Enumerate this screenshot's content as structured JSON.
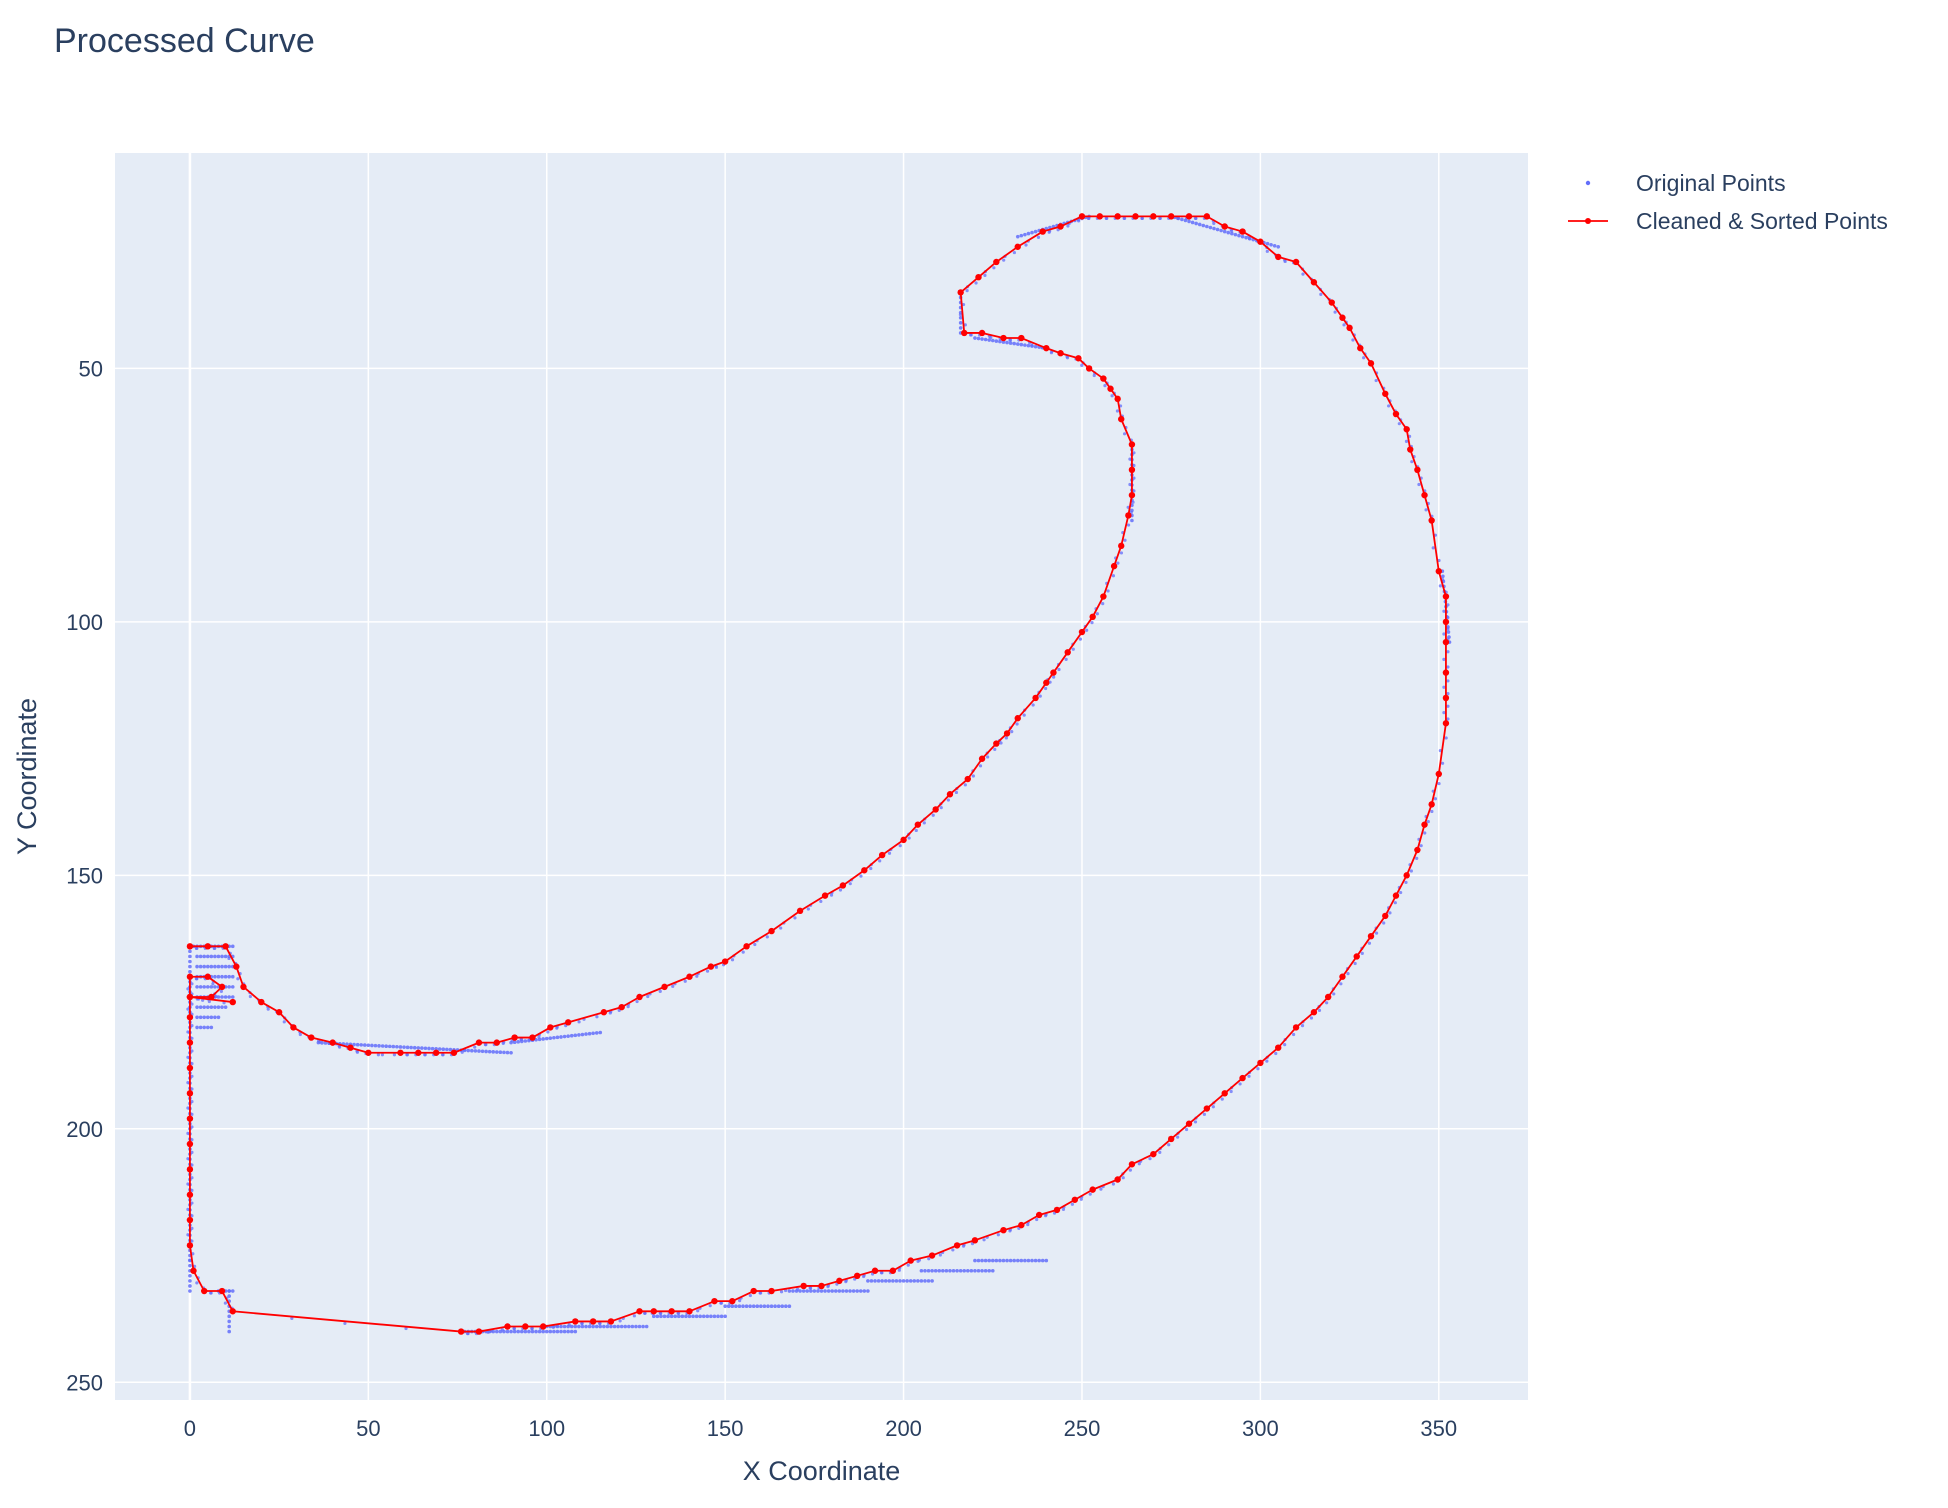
{
  "chart_data": {
    "type": "scatter",
    "title": "Processed Curve",
    "xlabel": "X Coordinate",
    "ylabel": "Y Coordinate",
    "xlim": [
      -21,
      375
    ],
    "ylim": [
      253.5,
      7.5
    ],
    "y_reversed": true,
    "grid": true,
    "legend_position": "top-right",
    "x_ticks": [
      0,
      50,
      100,
      150,
      200,
      250,
      300,
      350
    ],
    "y_ticks": [
      50,
      100,
      150,
      200,
      250
    ],
    "background_color": "#e5ecf6",
    "series": [
      {
        "name": "Original Points",
        "mode": "markers",
        "color": "#636efa",
        "segments": [
          {
            "from": [
              0,
              164
            ],
            "to": [
              0,
              232
            ]
          },
          {
            "from": [
              0,
              164
            ],
            "to": [
              12,
              164
            ]
          },
          {
            "from": [
              2,
              166
            ],
            "to": [
              12,
              166
            ]
          },
          {
            "from": [
              2,
              168
            ],
            "to": [
              12,
              168
            ]
          },
          {
            "from": [
              2,
              170
            ],
            "to": [
              12,
              170
            ]
          },
          {
            "from": [
              2,
              172
            ],
            "to": [
              12,
              172
            ]
          },
          {
            "from": [
              2,
              174
            ],
            "to": [
              12,
              174
            ]
          },
          {
            "from": [
              2,
              176
            ],
            "to": [
              10,
              176
            ]
          },
          {
            "from": [
              2,
              178
            ],
            "to": [
              8,
              178
            ]
          },
          {
            "from": [
              2,
              180
            ],
            "to": [
              6,
              180
            ]
          },
          {
            "from": [
              8,
              232
            ],
            "to": [
              12,
              232
            ]
          },
          {
            "from": [
              11,
              232
            ],
            "to": [
              11,
              240
            ]
          },
          {
            "from": [
              76,
              240
            ],
            "to": [
              108,
              240
            ]
          },
          {
            "from": [
              100,
              239
            ],
            "to": [
              128,
              239
            ]
          },
          {
            "from": [
              130,
              237
            ],
            "to": [
              150,
              237
            ]
          },
          {
            "from": [
              150,
              235
            ],
            "to": [
              168,
              235
            ]
          },
          {
            "from": [
              168,
              232
            ],
            "to": [
              190,
              232
            ]
          },
          {
            "from": [
              190,
              230
            ],
            "to": [
              208,
              230
            ]
          },
          {
            "from": [
              205,
              228
            ],
            "to": [
              225,
              228
            ]
          },
          {
            "from": [
              220,
              226
            ],
            "to": [
              240,
              226
            ]
          },
          {
            "from": [
              36,
              183
            ],
            "to": [
              90,
              185
            ]
          },
          {
            "from": [
              90,
              183
            ],
            "to": [
              115,
              181
            ]
          },
          {
            "from": [
              216,
              35
            ],
            "to": [
              216,
              43
            ]
          },
          {
            "from": [
              220,
              44
            ],
            "to": [
              240,
              46
            ]
          },
          {
            "from": [
              232,
              24
            ],
            "to": [
              252,
              20
            ]
          },
          {
            "from": [
              275,
              20
            ],
            "to": [
              305,
              26
            ]
          },
          {
            "from": [
              264,
              65
            ],
            "to": [
              264,
              80
            ]
          },
          {
            "from": [
              351,
              90
            ],
            "to": [
              353,
              104
            ]
          }
        ]
      },
      {
        "name": "Cleaned & Sorted Points",
        "mode": "lines+markers",
        "color": "#ff0000",
        "points": [
          [
            0,
            164
          ],
          [
            5,
            164
          ],
          [
            10,
            164
          ],
          [
            13,
            168
          ],
          [
            15,
            172
          ],
          [
            20,
            175
          ],
          [
            25,
            177
          ],
          [
            29,
            180
          ],
          [
            34,
            182
          ],
          [
            40,
            183
          ],
          [
            45,
            184
          ],
          [
            50,
            185
          ],
          [
            59,
            185
          ],
          [
            64,
            185
          ],
          [
            69,
            185
          ],
          [
            74,
            185
          ],
          [
            81,
            183
          ],
          [
            86,
            183
          ],
          [
            91,
            182
          ],
          [
            96,
            182
          ],
          [
            101,
            180
          ],
          [
            106,
            179
          ],
          [
            116,
            177
          ],
          [
            121,
            176
          ],
          [
            126,
            174
          ],
          [
            133,
            172
          ],
          [
            140,
            170
          ],
          [
            146,
            168
          ],
          [
            150,
            167
          ],
          [
            156,
            164
          ],
          [
            163,
            161
          ],
          [
            171,
            157
          ],
          [
            178,
            154
          ],
          [
            183,
            152
          ],
          [
            189,
            149
          ],
          [
            194,
            146
          ],
          [
            200,
            143
          ],
          [
            204,
            140
          ],
          [
            209,
            137
          ],
          [
            213,
            134
          ],
          [
            218,
            131
          ],
          [
            222,
            127
          ],
          [
            226,
            124
          ],
          [
            229,
            122
          ],
          [
            232,
            119
          ],
          [
            237,
            115
          ],
          [
            240,
            112
          ],
          [
            242,
            110
          ],
          [
            246,
            106
          ],
          [
            250,
            102
          ],
          [
            253,
            99
          ],
          [
            256,
            95
          ],
          [
            259,
            89
          ],
          [
            261,
            85
          ],
          [
            263,
            79
          ],
          [
            264,
            75
          ],
          [
            264,
            70
          ],
          [
            264,
            65
          ],
          [
            261,
            60
          ],
          [
            260,
            56
          ],
          [
            258,
            54
          ],
          [
            256,
            52
          ],
          [
            252,
            50
          ],
          [
            249,
            48
          ],
          [
            244,
            47
          ],
          [
            240,
            46
          ],
          [
            233,
            44
          ],
          [
            228,
            44
          ],
          [
            222,
            43
          ],
          [
            217,
            43
          ],
          [
            216,
            35
          ],
          [
            221,
            32
          ],
          [
            226,
            29
          ],
          [
            232,
            26
          ],
          [
            239,
            23
          ],
          [
            244,
            22
          ],
          [
            250,
            20
          ],
          [
            255,
            20
          ],
          [
            260,
            20
          ],
          [
            265,
            20
          ],
          [
            270,
            20
          ],
          [
            275,
            20
          ],
          [
            280,
            20
          ],
          [
            285,
            20
          ],
          [
            290,
            22
          ],
          [
            295,
            23
          ],
          [
            300,
            25
          ],
          [
            305,
            28
          ],
          [
            310,
            29
          ],
          [
            315,
            33
          ],
          [
            320,
            37
          ],
          [
            323,
            40
          ],
          [
            325,
            42
          ],
          [
            328,
            46
          ],
          [
            331,
            49
          ],
          [
            335,
            55
          ],
          [
            338,
            59
          ],
          [
            341,
            62
          ],
          [
            342,
            66
          ],
          [
            344,
            70
          ],
          [
            346,
            75
          ],
          [
            348,
            80
          ],
          [
            350,
            90
          ],
          [
            352,
            95
          ],
          [
            352,
            100
          ],
          [
            352,
            104
          ],
          [
            352,
            110
          ],
          [
            352,
            115
          ],
          [
            352,
            120
          ],
          [
            350,
            130
          ],
          [
            348,
            136
          ],
          [
            346,
            140
          ],
          [
            344,
            145
          ],
          [
            341,
            150
          ],
          [
            338,
            154
          ],
          [
            335,
            158
          ],
          [
            331,
            162
          ],
          [
            327,
            166
          ],
          [
            323,
            170
          ],
          [
            319,
            174
          ],
          [
            315,
            177
          ],
          [
            310,
            180
          ],
          [
            305,
            184
          ],
          [
            300,
            187
          ],
          [
            295,
            190
          ],
          [
            290,
            193
          ],
          [
            285,
            196
          ],
          [
            280,
            199
          ],
          [
            275,
            202
          ],
          [
            270,
            205
          ],
          [
            264,
            207
          ],
          [
            260,
            210
          ],
          [
            253,
            212
          ],
          [
            248,
            214
          ],
          [
            243,
            216
          ],
          [
            238,
            217
          ],
          [
            233,
            219
          ],
          [
            228,
            220
          ],
          [
            220,
            222
          ],
          [
            215,
            223
          ],
          [
            208,
            225
          ],
          [
            202,
            226
          ],
          [
            197,
            228
          ],
          [
            192,
            228
          ],
          [
            187,
            229
          ],
          [
            182,
            230
          ],
          [
            177,
            231
          ],
          [
            172,
            231
          ],
          [
            163,
            232
          ],
          [
            158,
            232
          ],
          [
            152,
            234
          ],
          [
            147,
            234
          ],
          [
            140,
            236
          ],
          [
            135,
            236
          ],
          [
            130,
            236
          ],
          [
            126,
            236
          ],
          [
            118,
            238
          ],
          [
            113,
            238
          ],
          [
            108,
            238
          ],
          [
            99,
            239
          ],
          [
            94,
            239
          ],
          [
            89,
            239
          ],
          [
            81,
            240
          ],
          [
            76,
            240
          ],
          [
            12,
            236
          ],
          [
            9,
            232
          ],
          [
            4,
            232
          ],
          [
            1,
            228
          ],
          [
            0,
            223
          ],
          [
            0,
            218
          ],
          [
            0,
            213
          ],
          [
            0,
            208
          ],
          [
            0,
            203
          ],
          [
            0,
            198
          ],
          [
            0,
            193
          ],
          [
            0,
            188
          ],
          [
            0,
            183
          ],
          [
            0,
            178
          ],
          [
            0,
            174
          ],
          [
            6,
            174
          ],
          [
            9,
            172
          ],
          [
            5,
            170
          ],
          [
            0,
            170
          ],
          [
            0,
            174
          ],
          [
            12,
            175
          ]
        ]
      }
    ]
  }
}
